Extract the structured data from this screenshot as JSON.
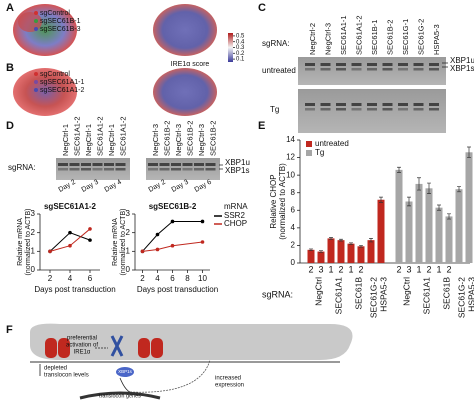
{
  "panels": [
    "A",
    "B",
    "C",
    "D",
    "E",
    "F"
  ],
  "umap_a": {
    "legend": [
      "sgControl",
      "sgSEC61B-1",
      "sgSEC61B-3"
    ],
    "colorbar_label": "IRE1α score",
    "colorbar_lim": [
      0.05,
      0.55
    ],
    "colorbar_ticks": [
      0.5,
      0.4,
      0.3,
      0.2,
      0.1
    ]
  },
  "umap_b": {
    "legend": [
      "sgControl",
      "sgSEC61A1-1",
      "sgSEC61A1-2"
    ]
  },
  "gel_c": {
    "row_label": "sgRNA:",
    "lanes": [
      "NegCtrl-2",
      "NegCtrl-3",
      "SEC61A1-1",
      "SEC61A1-2",
      "SEC61B-1",
      "SEC61B-2",
      "SEC61G-1",
      "SEC61G-2",
      "HSPA5-3"
    ],
    "conditions": [
      "untreated",
      "Tg"
    ],
    "bands": [
      "XBP1u",
      "XBP1s"
    ]
  },
  "gel_d": {
    "row_label": "sgRNA:",
    "left": {
      "lanes": [
        "NegCtrl-1",
        "SEC61A1-2",
        "NegCtrl-1",
        "SEC61A1-2",
        "NegCtrl-1",
        "SEC61A1-2"
      ],
      "days": [
        "Day 2",
        "Day 3",
        "Day 4"
      ]
    },
    "right": {
      "lanes": [
        "NegCtrl-3",
        "SEC61B-2",
        "NegCtrl-3",
        "SEC61B-2",
        "NegCtrl-3",
        "SEC61B-2"
      ],
      "days": [
        "Day 2",
        "Day 3",
        "Day 6"
      ]
    },
    "bands": [
      "XBP1u",
      "XBP1s"
    ]
  },
  "chart_data": [
    {
      "type": "line",
      "title": "sgSEC61A1-2",
      "x": [
        2,
        4,
        6
      ],
      "xlim": [
        1,
        7
      ],
      "xticks": [
        2,
        4,
        6
      ],
      "ylim": [
        0,
        3
      ],
      "yticks": [
        0,
        1,
        2,
        3
      ],
      "xlabel": "Days post transduction",
      "ylabel": [
        "Relative mRNA",
        "(normalized to ACTB)"
      ],
      "series": [
        {
          "color": "#000000",
          "values": [
            1.0,
            2.0,
            1.6
          ]
        },
        {
          "color": "#c0281f",
          "values": [
            1.0,
            1.3,
            2.2
          ]
        }
      ]
    },
    {
      "type": "line",
      "title": "sgSEC61B-2",
      "x": [
        2,
        4,
        6,
        10
      ],
      "xlim": [
        1,
        11
      ],
      "xticks": [
        2,
        4,
        6,
        8,
        10
      ],
      "ylim": [
        0,
        3
      ],
      "yticks": [
        0,
        1,
        2,
        3
      ],
      "xlabel": "Days post transduction",
      "ylabel": [
        "Relative mRNA",
        "(normalized to ACTB)"
      ],
      "legend_title": "mRNA",
      "series": [
        {
          "name": "SSR2",
          "color": "#000000",
          "values": [
            1.0,
            1.9,
            2.6,
            2.6
          ]
        },
        {
          "name": "CHOP",
          "color": "#c0281f",
          "values": [
            1.0,
            1.1,
            1.3,
            1.5
          ]
        }
      ]
    },
    {
      "type": "bar",
      "ylabel": [
        "Relative CHOP",
        "(normalized to ACTB)"
      ],
      "ylim": [
        0,
        14
      ],
      "yticks": [
        0,
        2,
        4,
        6,
        8,
        10,
        12,
        14
      ],
      "xlabel": "sgRNA:",
      "categories": [
        "2",
        "3",
        "1",
        "2",
        "1",
        "2",
        null,
        null
      ],
      "groups": [
        "NegCtrl",
        "SEC61A1",
        "SEC61B",
        "SEC61G-2",
        "HSPA5-3"
      ],
      "legend": "upper left",
      "series": [
        {
          "name": "untreated",
          "color": "#c0281f",
          "values": [
            1.5,
            1.3,
            2.8,
            2.6,
            2.2,
            1.9,
            2.6,
            7.2
          ],
          "errors": [
            0.1,
            0.1,
            0.1,
            0.1,
            0.1,
            0.1,
            0.2,
            0.3
          ]
        },
        {
          "name": "Tg",
          "color": "#a6a6a6",
          "values": [
            10.6,
            7.0,
            9.0,
            8.5,
            6.3,
            5.3,
            8.4,
            12.6
          ],
          "errors": [
            0.3,
            0.5,
            0.7,
            0.6,
            0.3,
            0.3,
            0.3,
            0.6
          ]
        }
      ]
    }
  ],
  "diagram_f": {
    "depleted": [
      "depleted",
      "translocon levels"
    ],
    "activation": [
      "preferential",
      "activation of",
      "IRE1α"
    ],
    "xbp1s": "XBP1s",
    "expression": [
      "increased",
      "expression"
    ],
    "genes": "translocon genes"
  }
}
